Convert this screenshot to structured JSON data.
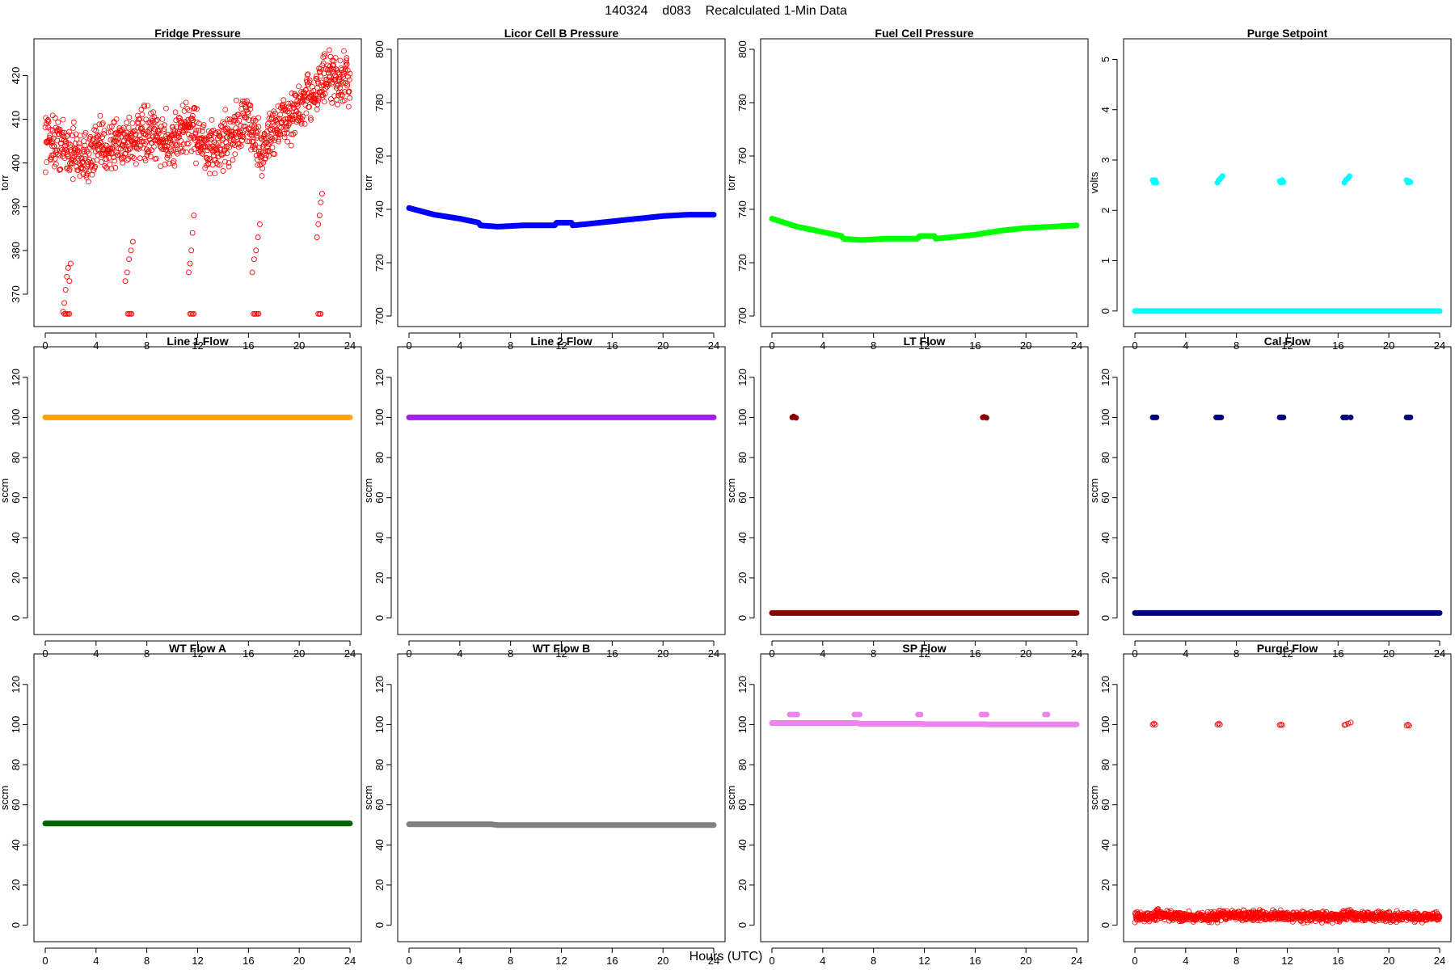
{
  "page": {
    "title": "140324    d083    Recalculated 1-Min Data",
    "xlabel": "Hours (UTC)"
  },
  "chart_data": [
    {
      "type": "scatter",
      "title": "Fridge Pressure",
      "ylabel": "torr",
      "xlim": [
        0,
        24
      ],
      "ylim": [
        365,
        426
      ],
      "xticks": [
        0,
        4,
        8,
        12,
        16,
        20,
        24
      ],
      "yticks": [
        370,
        380,
        390,
        400,
        410,
        420
      ],
      "color": "#ff0000",
      "marker": "open-circle",
      "series": [
        {
          "kind": "trend",
          "x": [
            0,
            2,
            3,
            4,
            6,
            8,
            10,
            11.5,
            12.8,
            14,
            16,
            17,
            18,
            20,
            21,
            22,
            24
          ],
          "y": [
            406,
            403,
            401,
            403,
            405,
            406,
            405,
            409,
            402,
            405,
            410,
            402,
            408,
            412,
            416,
            419,
            419
          ],
          "spread": 5
        },
        {
          "kind": "points",
          "x": [
            1.4,
            1.5,
            1.6,
            1.7,
            1.8,
            1.9,
            2.0,
            6.3,
            6.45,
            6.6,
            6.75,
            6.9,
            11.3,
            11.4,
            11.5,
            11.6,
            11.7,
            16.3,
            16.45,
            16.6,
            16.75,
            16.9,
            21.4,
            21.5,
            21.6,
            21.7,
            21.8
          ],
          "y": [
            366,
            368,
            371,
            374,
            376,
            373,
            377,
            373,
            375,
            378,
            380,
            382,
            375,
            377,
            380,
            384,
            388,
            375,
            378,
            380,
            383,
            386,
            383,
            386,
            388,
            391,
            393
          ]
        },
        {
          "kind": "points",
          "x": [
            1.5,
            1.6,
            1.7,
            1.8,
            1.9,
            6.5,
            6.6,
            6.7,
            6.8,
            11.4,
            11.5,
            11.6,
            11.7,
            16.4,
            16.5,
            16.6,
            16.7,
            16.8,
            21.5,
            21.6,
            21.7
          ],
          "y": [
            365.5,
            365.5,
            365.5,
            365.5,
            365.5,
            365.5,
            365.5,
            365.5,
            365.5,
            365.5,
            365.5,
            365.5,
            365.5,
            365.5,
            365.5,
            365.5,
            365.5,
            365.5,
            365.5,
            365.5,
            365.5
          ]
        }
      ]
    },
    {
      "type": "scatter",
      "title": "Licor Cell B Pressure",
      "ylabel": "torr",
      "xlim": [
        0,
        24
      ],
      "ylim": [
        700,
        800
      ],
      "xticks": [
        0,
        4,
        8,
        12,
        16,
        20,
        24
      ],
      "yticks": [
        700,
        720,
        740,
        760,
        780,
        800
      ],
      "color": "#0000ff",
      "marker": "dense-line",
      "series": [
        {
          "kind": "trend",
          "x": [
            0,
            2,
            4,
            5.5,
            5.6,
            7,
            9,
            11.5,
            11.6,
            12.8,
            12.9,
            14,
            16,
            18,
            20,
            22,
            24
          ],
          "y": [
            740.5,
            738,
            736.5,
            735,
            734,
            733.5,
            734,
            734,
            735,
            735,
            734,
            734.5,
            735.5,
            736.5,
            737.5,
            738,
            738
          ],
          "spread": 0.3
        }
      ]
    },
    {
      "type": "scatter",
      "title": "Fuel Cell Pressure",
      "ylabel": "torr",
      "xlim": [
        0,
        24
      ],
      "ylim": [
        700,
        800
      ],
      "xticks": [
        0,
        4,
        8,
        12,
        16,
        20,
        24
      ],
      "yticks": [
        700,
        720,
        740,
        760,
        780,
        800
      ],
      "color": "#00ff00",
      "marker": "dense-line",
      "series": [
        {
          "kind": "trend",
          "x": [
            0,
            2,
            4,
            5.5,
            5.6,
            7,
            9,
            11.5,
            11.6,
            12.8,
            12.9,
            14,
            16,
            18,
            20,
            22,
            24
          ],
          "y": [
            736.5,
            733.5,
            731.5,
            730,
            729,
            728.5,
            729,
            729,
            730,
            730,
            729,
            729.5,
            730.5,
            732,
            733,
            733.5,
            734
          ],
          "spread": 0.3
        }
      ]
    },
    {
      "type": "scatter",
      "title": "Purge Setpoint",
      "ylabel": "volts",
      "xlim": [
        0,
        24
      ],
      "ylim": [
        -0.1,
        5.2
      ],
      "xticks": [
        0,
        4,
        8,
        12,
        16,
        20,
        24
      ],
      "yticks": [
        0,
        1,
        2,
        3,
        4,
        5
      ],
      "color": "#00ffff",
      "marker": "dense-line",
      "series": [
        {
          "kind": "trend",
          "x": [
            0,
            24
          ],
          "y": [
            0,
            0
          ],
          "spread": 0
        },
        {
          "kind": "points",
          "x": [
            1.4,
            1.5,
            1.6,
            1.7,
            6.5,
            6.6,
            6.7,
            6.8,
            6.9,
            11.4,
            11.5,
            11.6,
            11.7,
            16.5,
            16.6,
            16.7,
            16.8,
            16.9,
            21.4,
            21.5,
            21.6,
            21.7
          ],
          "y": [
            2.6,
            2.55,
            2.6,
            2.55,
            2.55,
            2.6,
            2.62,
            2.65,
            2.68,
            2.58,
            2.55,
            2.6,
            2.56,
            2.55,
            2.6,
            2.62,
            2.64,
            2.68,
            2.6,
            2.55,
            2.58,
            2.56
          ]
        }
      ]
    },
    {
      "type": "scatter",
      "title": "Line 1 Flow",
      "ylabel": "sccm",
      "xlim": [
        0,
        24
      ],
      "ylim": [
        -3,
        130
      ],
      "xticks": [
        0,
        4,
        8,
        12,
        16,
        20,
        24
      ],
      "yticks": [
        0,
        20,
        40,
        60,
        80,
        100,
        120
      ],
      "color": "#ffa500",
      "marker": "dense-line",
      "series": [
        {
          "kind": "trend",
          "x": [
            0,
            24
          ],
          "y": [
            100,
            100
          ],
          "spread": 0
        }
      ]
    },
    {
      "type": "scatter",
      "title": "Line 2 Flow",
      "ylabel": "sccm",
      "xlim": [
        0,
        24
      ],
      "ylim": [
        -3,
        130
      ],
      "xticks": [
        0,
        4,
        8,
        12,
        16,
        20,
        24
      ],
      "yticks": [
        0,
        20,
        40,
        60,
        80,
        100,
        120
      ],
      "color": "#a020f0",
      "marker": "dense-line",
      "series": [
        {
          "kind": "trend",
          "x": [
            0,
            24
          ],
          "y": [
            100,
            100
          ],
          "spread": 0
        }
      ]
    },
    {
      "type": "scatter",
      "title": "LT Flow",
      "ylabel": "sccm",
      "xlim": [
        0,
        24
      ],
      "ylim": [
        -3,
        130
      ],
      "xticks": [
        0,
        4,
        8,
        12,
        16,
        20,
        24
      ],
      "yticks": [
        0,
        20,
        40,
        60,
        80,
        100,
        120
      ],
      "color": "#8b0000",
      "marker": "dense-line",
      "series": [
        {
          "kind": "trend",
          "x": [
            0,
            24
          ],
          "y": [
            2.5,
            2.5
          ],
          "spread": 0
        },
        {
          "kind": "points",
          "x": [
            1.6,
            1.7,
            1.8,
            1.9,
            16.6,
            16.7,
            16.8,
            16.9
          ],
          "y": [
            100,
            100.5,
            100,
            99.8,
            100,
            100.3,
            100,
            99.8
          ]
        }
      ]
    },
    {
      "type": "scatter",
      "title": "Cal Flow",
      "ylabel": "sccm",
      "xlim": [
        0,
        24
      ],
      "ylim": [
        -3,
        130
      ],
      "xticks": [
        0,
        4,
        8,
        12,
        16,
        20,
        24
      ],
      "yticks": [
        0,
        20,
        40,
        60,
        80,
        100,
        120
      ],
      "color": "#000080",
      "marker": "dense-line",
      "series": [
        {
          "kind": "trend",
          "x": [
            0,
            24
          ],
          "y": [
            2.5,
            2.5
          ],
          "spread": 0
        },
        {
          "kind": "points",
          "x": [
            1.4,
            1.5,
            1.6,
            1.7,
            6.4,
            6.5,
            6.6,
            6.7,
            6.8,
            11.4,
            11.5,
            11.6,
            11.7,
            16.4,
            16.5,
            16.6,
            16.7,
            17.0,
            21.4,
            21.5,
            21.6,
            21.7
          ],
          "y": [
            100,
            100,
            100,
            100,
            100,
            100,
            100,
            100,
            100,
            100,
            100,
            100,
            100,
            100,
            100,
            100,
            100,
            100,
            100,
            100,
            100,
            100
          ]
        }
      ]
    },
    {
      "type": "scatter",
      "title": "WT Flow A",
      "ylabel": "sccm",
      "xlim": [
        0,
        24
      ],
      "ylim": [
        -3,
        130
      ],
      "xticks": [
        0,
        4,
        8,
        12,
        16,
        20,
        24
      ],
      "yticks": [
        0,
        20,
        40,
        60,
        80,
        100,
        120
      ],
      "color": "#006400",
      "marker": "dense-line",
      "series": [
        {
          "kind": "trend",
          "x": [
            0,
            24
          ],
          "y": [
            50.7,
            50.7
          ],
          "spread": 0
        }
      ]
    },
    {
      "type": "scatter",
      "title": "WT Flow B",
      "ylabel": "sccm",
      "xlim": [
        0,
        24
      ],
      "ylim": [
        -3,
        130
      ],
      "xticks": [
        0,
        4,
        8,
        12,
        16,
        20,
        24
      ],
      "yticks": [
        0,
        20,
        40,
        60,
        80,
        100,
        120
      ],
      "color": "#808080",
      "marker": "dense-line",
      "series": [
        {
          "kind": "trend",
          "x": [
            0,
            6.5,
            7,
            24
          ],
          "y": [
            50.3,
            50.3,
            49.9,
            49.9
          ],
          "spread": 0
        }
      ]
    },
    {
      "type": "scatter",
      "title": "SP Flow",
      "ylabel": "sccm",
      "xlim": [
        0,
        24
      ],
      "ylim": [
        -3,
        130
      ],
      "xticks": [
        0,
        4,
        8,
        12,
        16,
        20,
        24
      ],
      "yticks": [
        0,
        20,
        40,
        60,
        80,
        100,
        120
      ],
      "color": "#ee82ee",
      "marker": "dense-line",
      "series": [
        {
          "kind": "trend",
          "x": [
            0,
            6.7,
            6.9,
            11.7,
            11.9,
            16.7,
            16.9,
            24
          ],
          "y": [
            100.8,
            100.8,
            100.4,
            100.4,
            100.2,
            100.2,
            100.1,
            100.1
          ],
          "spread": 0
        },
        {
          "kind": "points",
          "x": [
            1.4,
            1.6,
            1.8,
            2.0,
            6.5,
            6.7,
            6.9,
            11.5,
            11.7,
            16.5,
            16.7,
            16.9,
            21.5,
            21.7
          ],
          "y": [
            105,
            105,
            105,
            105,
            105,
            105,
            105,
            105,
            105,
            105,
            105,
            105,
            105,
            105
          ]
        }
      ]
    },
    {
      "type": "scatter",
      "title": "Purge Flow",
      "ylabel": "sccm",
      "xlim": [
        0,
        24
      ],
      "ylim": [
        -3,
        130
      ],
      "xticks": [
        0,
        4,
        8,
        12,
        16,
        20,
        24
      ],
      "yticks": [
        0,
        20,
        40,
        60,
        80,
        100,
        120
      ],
      "color": "#ff0000",
      "marker": "open-circle",
      "series": [
        {
          "kind": "trend",
          "x": [
            0,
            1.5,
            1.8,
            2.2,
            6.5,
            6.7,
            16.6,
            16.8,
            17.2,
            24
          ],
          "y": [
            4,
            4,
            6,
            4.5,
            4,
            5,
            4,
            6,
            4.5,
            4
          ],
          "spread": 2
        },
        {
          "kind": "points",
          "x": [
            1.4,
            1.5,
            1.6,
            6.5,
            6.6,
            6.7,
            11.4,
            11.5,
            11.6,
            16.5,
            16.6,
            16.8,
            17.0,
            21.4,
            21.5,
            21.6
          ],
          "y": [
            100,
            100.5,
            100,
            100,
            100.5,
            100,
            99.8,
            100,
            99.8,
            99.8,
            100,
            100.5,
            101,
            99.5,
            100,
            99.5
          ]
        }
      ]
    }
  ]
}
